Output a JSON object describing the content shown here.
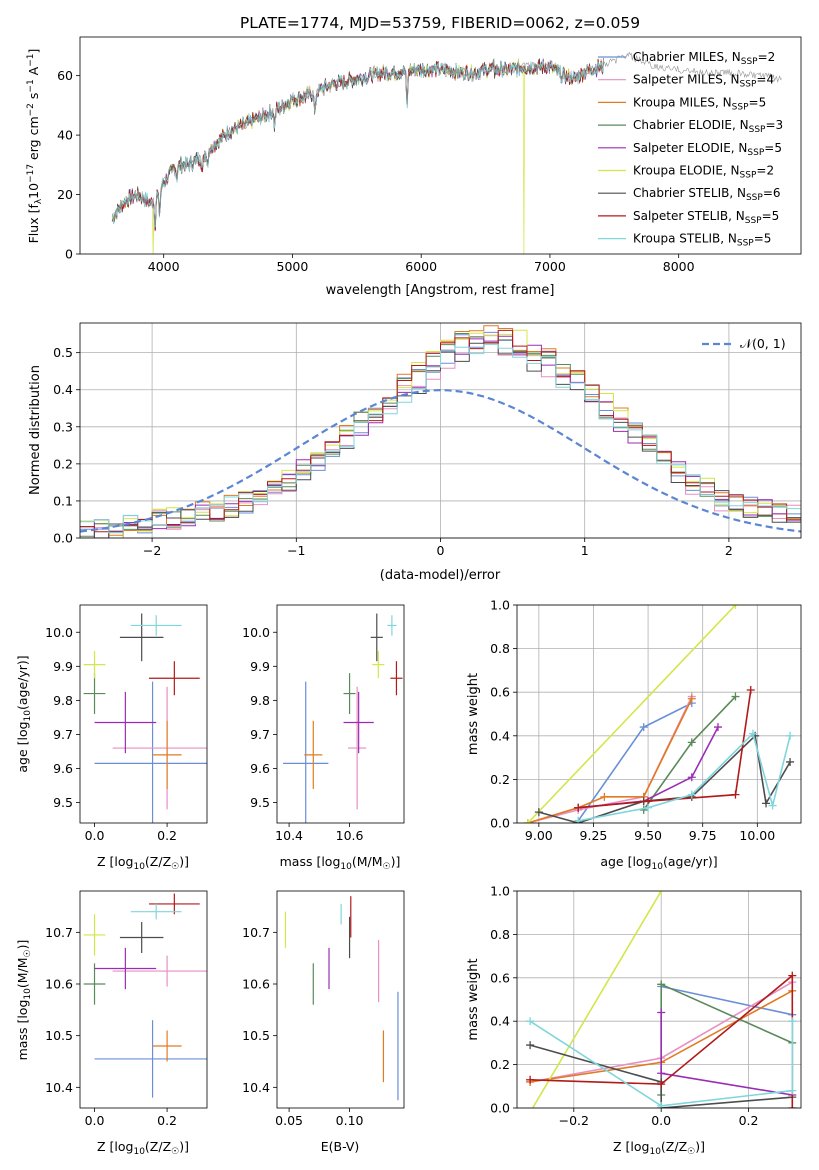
{
  "colors": {
    "Chabrier MILES": "#6a8fd8",
    "Salpeter MILES": "#e88fc3",
    "Kroupa MILES": "#e07b22",
    "Chabrier ELODIE": "#5a8a5a",
    "Salpeter ELODIE": "#9b2db5",
    "Kroupa ELODIE": "#d4e64a",
    "Chabrier STELIB": "#4d4d4d",
    "Salpeter STELIB": "#b21a1a",
    "Kroupa STELIB": "#7fd6dc",
    "normal": "#5b86d4",
    "grid": "#b0b0b0"
  },
  "chart_data": [
    {
      "id": "spectrum",
      "type": "line",
      "title": "PLATE=1774, MJD=53759, FIBERID=0062, z=0.059",
      "xlabel": "wavelength [Angstrom, rest frame]",
      "ylabel": "Flux [f",
      "ylabel_sub": "λ",
      "ylabel_rest": "10",
      "ylabel_exp": "−17",
      "ylabel_rest2": " erg cm",
      "ylabel_exp2": "−2",
      "ylabel_rest3": " s",
      "ylabel_exp3": "−1",
      "ylabel_rest4": " A",
      "ylabel_exp4": "−1",
      "ylabel_rest5": "]",
      "xlim": [
        3350,
        8950
      ],
      "ylim": [
        0,
        73
      ],
      "xticks": [
        4000,
        5000,
        6000,
        7000,
        8000
      ],
      "yticks": [
        0,
        20,
        40,
        60
      ],
      "legend_location": "right",
      "legend": [
        {
          "name": "Chabrier MILES",
          "nssp": "2"
        },
        {
          "name": "Salpeter MILES",
          "nssp": "4"
        },
        {
          "name": "Kroupa MILES",
          "nssp": "5"
        },
        {
          "name": "Chabrier ELODIE",
          "nssp": "3"
        },
        {
          "name": "Salpeter ELODIE",
          "nssp": "5"
        },
        {
          "name": "Kroupa ELODIE",
          "nssp": "2"
        },
        {
          "name": "Chabrier STELIB",
          "nssp": "6"
        },
        {
          "name": "Salpeter STELIB",
          "nssp": "5"
        },
        {
          "name": "Kroupa STELIB",
          "nssp": "5"
        }
      ],
      "nssp_label": "N",
      "nssp_sub": "SSP",
      "continuum": [
        [
          3600,
          12
        ],
        [
          3700,
          18
        ],
        [
          3800,
          20
        ],
        [
          3900,
          17
        ],
        [
          4000,
          24
        ],
        [
          4100,
          30
        ],
        [
          4200,
          30
        ],
        [
          4300,
          33
        ],
        [
          4400,
          37
        ],
        [
          4500,
          41
        ],
        [
          4600,
          43
        ],
        [
          4700,
          45
        ],
        [
          4800,
          47
        ],
        [
          4900,
          49
        ],
        [
          5000,
          52
        ],
        [
          5100,
          53
        ],
        [
          5200,
          55
        ],
        [
          5300,
          57
        ],
        [
          5400,
          58
        ],
        [
          5500,
          59
        ],
        [
          5600,
          60
        ],
        [
          5700,
          61
        ],
        [
          5800,
          61
        ],
        [
          5900,
          62
        ],
        [
          6000,
          62
        ],
        [
          6100,
          62
        ],
        [
          6200,
          62
        ],
        [
          6300,
          61
        ],
        [
          6400,
          61
        ],
        [
          6500,
          62
        ],
        [
          6600,
          62
        ],
        [
          6700,
          62
        ],
        [
          6800,
          63
        ],
        [
          6900,
          63
        ],
        [
          7000,
          63
        ],
        [
          7100,
          60
        ],
        [
          7200,
          59
        ],
        [
          7300,
          62
        ],
        [
          7400,
          63
        ]
      ],
      "absorption_lines": [
        [
          3933,
          10
        ],
        [
          3968,
          8
        ],
        [
          4102,
          4
        ],
        [
          4300,
          6
        ],
        [
          4340,
          4
        ],
        [
          4861,
          5
        ],
        [
          5175,
          8
        ],
        [
          5890,
          12
        ],
        [
          6563,
          4
        ]
      ],
      "emission_lines": [
        [
          6563,
          8
        ]
      ],
      "drops": [
        {
          "series": "Kroupa ELODIE",
          "x": 3920
        },
        {
          "series": "Kroupa ELODIE",
          "x": 6800
        },
        {
          "series": "Salpeter STELIB",
          "x": 7420
        }
      ],
      "grey_extension": [
        [
          7400,
          63
        ],
        [
          7600,
          67
        ],
        [
          7800,
          63
        ],
        [
          8000,
          62
        ],
        [
          8200,
          61
        ],
        [
          8400,
          61
        ],
        [
          8600,
          60
        ],
        [
          8800,
          59
        ]
      ]
    },
    {
      "id": "residuals",
      "type": "histogram",
      "xlabel": "(data-model)/error",
      "ylabel": "Normed distribution",
      "xlim": [
        -2.5,
        2.5
      ],
      "ylim": [
        0,
        0.58
      ],
      "xticks": [
        -2,
        -1,
        0,
        1,
        2
      ],
      "yticks": [
        0.0,
        0.1,
        0.2,
        0.3,
        0.4,
        0.5
      ],
      "grid": true,
      "legend_label": "𝒩(0, 1)",
      "legend_location": "top-right",
      "bin_width": 0.1,
      "bin_start": -2.5,
      "template": [
        0.015,
        0.02,
        0.025,
        0.03,
        0.04,
        0.045,
        0.05,
        0.06,
        0.065,
        0.07,
        0.08,
        0.09,
        0.1,
        0.13,
        0.15,
        0.18,
        0.2,
        0.23,
        0.26,
        0.29,
        0.32,
        0.35,
        0.38,
        0.41,
        0.44,
        0.47,
        0.49,
        0.5,
        0.51,
        0.5,
        0.49,
        0.47,
        0.45,
        0.42,
        0.39,
        0.36,
        0.33,
        0.3,
        0.27,
        0.24,
        0.2,
        0.17,
        0.14,
        0.12,
        0.1,
        0.09,
        0.08,
        0.07,
        0.065,
        0.06
      ],
      "scale": [
        1.0,
        0.97,
        1.03,
        1.01,
        0.99,
        1.05,
        0.96,
        1.02,
        0.98
      ]
    },
    {
      "id": "age_vs_Z",
      "type": "errorbar",
      "xlabel": "Z [log",
      "xlabel_sub": "10",
      "xlabel_rest": "(Z/Z",
      "xlabel_sun": "☉",
      "xlabel_end": ")]",
      "ylabel": "age  [log",
      "ylabel_sub": "10",
      "ylabel_rest": "(age/yr)]",
      "xlim": [
        -0.04,
        0.31
      ],
      "ylim": [
        9.44,
        10.08
      ],
      "xticks": [
        0.0,
        0.2
      ],
      "yticks": [
        9.5,
        9.6,
        9.7,
        9.8,
        9.9,
        10.0
      ],
      "points": [
        {
          "series": "Chabrier MILES",
          "x": 0.16,
          "xerr": 0.16,
          "y": 9.615,
          "yerr": 0.24
        },
        {
          "series": "Salpeter MILES",
          "x": 0.2,
          "xerr": 0.15,
          "y": 9.66,
          "yerr": 0.18
        },
        {
          "series": "Kroupa MILES",
          "x": 0.2,
          "xerr": 0.04,
          "y": 9.64,
          "yerr": 0.1
        },
        {
          "series": "Chabrier ELODIE",
          "x": 0.0,
          "xerr": 0.03,
          "y": 9.82,
          "yerr": 0.06
        },
        {
          "series": "Salpeter ELODIE",
          "x": 0.085,
          "xerr": 0.085,
          "y": 9.735,
          "yerr": 0.09
        },
        {
          "series": "Kroupa ELODIE",
          "x": 0.0,
          "xerr": 0.03,
          "y": 9.905,
          "yerr": 0.04
        },
        {
          "series": "Chabrier STELIB",
          "x": 0.13,
          "xerr": 0.06,
          "y": 9.985,
          "yerr": 0.07
        },
        {
          "series": "Salpeter STELIB",
          "x": 0.22,
          "xerr": 0.07,
          "y": 9.865,
          "yerr": 0.05
        },
        {
          "series": "Kroupa STELIB",
          "x": 0.17,
          "xerr": 0.07,
          "y": 10.02,
          "yerr": 0.03
        }
      ]
    },
    {
      "id": "age_vs_mass",
      "type": "errorbar",
      "xlabel": "mass [log",
      "xlabel_sub": "10",
      "xlabel_rest": "(M/M",
      "xlabel_sun": "☉",
      "xlabel_end": ")]",
      "xlim": [
        10.36,
        10.78
      ],
      "ylim": [
        9.44,
        10.08
      ],
      "xticks": [
        10.4,
        10.6
      ],
      "yticks": [
        9.5,
        9.6,
        9.7,
        9.8,
        9.9,
        10.0
      ],
      "points": [
        {
          "series": "Chabrier MILES",
          "x": 10.455,
          "xerr": 0.075,
          "y": 9.615,
          "yerr": 0.24
        },
        {
          "series": "Salpeter MILES",
          "x": 10.625,
          "xerr": 0.03,
          "y": 9.66,
          "yerr": 0.18
        },
        {
          "series": "Kroupa MILES",
          "x": 10.48,
          "xerr": 0.03,
          "y": 9.64,
          "yerr": 0.1
        },
        {
          "series": "Chabrier ELODIE",
          "x": 10.6,
          "xerr": 0.02,
          "y": 9.82,
          "yerr": 0.06
        },
        {
          "series": "Salpeter ELODIE",
          "x": 10.63,
          "xerr": 0.05,
          "y": 9.735,
          "yerr": 0.09
        },
        {
          "series": "Kroupa ELODIE",
          "x": 10.695,
          "xerr": 0.02,
          "y": 9.905,
          "yerr": 0.04
        },
        {
          "series": "Chabrier STELIB",
          "x": 10.69,
          "xerr": 0.02,
          "y": 9.985,
          "yerr": 0.07
        },
        {
          "series": "Salpeter STELIB",
          "x": 10.755,
          "xerr": 0.02,
          "y": 9.865,
          "yerr": 0.05
        },
        {
          "series": "Kroupa STELIB",
          "x": 10.74,
          "xerr": 0.015,
          "y": 10.02,
          "yerr": 0.03
        }
      ]
    },
    {
      "id": "mass_weight_vs_age",
      "type": "line",
      "xlabel": "age  [log",
      "xlabel_sub": "10",
      "xlabel_rest": "(age/yr)]",
      "ylabel": "mass weight",
      "xlim": [
        8.9,
        10.2
      ],
      "ylim": [
        0,
        1.0
      ],
      "xticks": [
        9.0,
        9.25,
        9.5,
        9.75,
        10.0
      ],
      "yticks": [
        0.0,
        0.2,
        0.4,
        0.6,
        0.8,
        1.0
      ],
      "grid": true,
      "series": [
        {
          "name": "Chabrier MILES",
          "x": [
            9.18,
            9.48,
            9.7
          ],
          "y": [
            0.01,
            0.44,
            0.55
          ]
        },
        {
          "name": "Salpeter MILES",
          "x": [
            8.95,
            9.18,
            9.48,
            9.7
          ],
          "y": [
            0.0,
            0.06,
            0.12,
            0.58
          ]
        },
        {
          "name": "Kroupa MILES",
          "x": [
            8.95,
            9.18,
            9.3,
            9.48,
            9.7
          ],
          "y": [
            0.0,
            0.07,
            0.12,
            0.12,
            0.57
          ]
        },
        {
          "name": "Chabrier ELODIE",
          "x": [
            9.48,
            9.7,
            9.9
          ],
          "y": [
            0.06,
            0.37,
            0.58
          ]
        },
        {
          "name": "Salpeter ELODIE",
          "x": [
            9.18,
            9.48,
            9.7,
            9.82
          ],
          "y": [
            0.07,
            0.1,
            0.21,
            0.44
          ]
        },
        {
          "name": "Kroupa ELODIE",
          "x": [
            8.95,
            9.9
          ],
          "y": [
            0.0,
            1.0
          ]
        },
        {
          "name": "Chabrier STELIB",
          "x": [
            9.0,
            9.18,
            9.48,
            9.7,
            9.99,
            10.04,
            10.15
          ],
          "y": [
            0.05,
            0.0,
            0.1,
            0.12,
            0.4,
            0.09,
            0.28
          ]
        },
        {
          "name": "Salpeter STELIB",
          "x": [
            9.18,
            9.5,
            9.9,
            9.97
          ],
          "y": [
            0.07,
            0.1,
            0.13,
            0.61
          ]
        },
        {
          "name": "Kroupa STELIB",
          "x": [
            9.18,
            9.5,
            9.7,
            9.98,
            10.07,
            10.15
          ],
          "y": [
            0.01,
            0.07,
            0.13,
            0.41,
            0.08,
            0.4
          ]
        }
      ]
    },
    {
      "id": "mass_vs_Z",
      "type": "errorbar",
      "xlabel": "Z [log",
      "xlabel_sub": "10",
      "xlabel_rest": "(Z/Z",
      "xlabel_sun": "☉",
      "xlabel_end": ")]",
      "ylabel": "mass [log",
      "ylabel_sub": "10",
      "ylabel_rest": "(M/M",
      "ylabel_sun": "☉",
      "ylabel_end": ")]",
      "xlim": [
        -0.04,
        0.31
      ],
      "ylim": [
        10.36,
        10.78
      ],
      "xticks": [
        0.0,
        0.2
      ],
      "yticks": [
        10.4,
        10.5,
        10.6,
        10.7
      ],
      "points": [
        {
          "series": "Chabrier MILES",
          "x": 0.16,
          "xerr": 0.16,
          "y": 10.455,
          "yerr": 0.075
        },
        {
          "series": "Salpeter MILES",
          "x": 0.2,
          "xerr": 0.15,
          "y": 10.625,
          "yerr": 0.03
        },
        {
          "series": "Kroupa MILES",
          "x": 0.2,
          "xerr": 0.04,
          "y": 10.48,
          "yerr": 0.03
        },
        {
          "series": "Chabrier ELODIE",
          "x": 0.0,
          "xerr": 0.03,
          "y": 10.6,
          "yerr": 0.04
        },
        {
          "series": "Salpeter ELODIE",
          "x": 0.085,
          "xerr": 0.085,
          "y": 10.63,
          "yerr": 0.04
        },
        {
          "series": "Kroupa ELODIE",
          "x": 0.0,
          "xerr": 0.03,
          "y": 10.695,
          "yerr": 0.04
        },
        {
          "series": "Chabrier STELIB",
          "x": 0.13,
          "xerr": 0.06,
          "y": 10.69,
          "yerr": 0.03
        },
        {
          "series": "Salpeter STELIB",
          "x": 0.22,
          "xerr": 0.07,
          "y": 10.755,
          "yerr": 0.02
        },
        {
          "series": "Kroupa STELIB",
          "x": 0.17,
          "xerr": 0.07,
          "y": 10.74,
          "yerr": 0.015
        }
      ]
    },
    {
      "id": "mass_vs_ebv",
      "type": "errorbar",
      "xlabel": "E(B-V)",
      "xlim": [
        0.04,
        0.145
      ],
      "ylim": [
        10.36,
        10.78
      ],
      "xticks": [
        0.05,
        0.1
      ],
      "yticks": [
        10.4,
        10.5,
        10.6,
        10.7
      ],
      "points": [
        {
          "series": "Chabrier MILES",
          "x": 0.14,
          "xerr": 0.0,
          "y": 10.48,
          "yerr": 0.105
        },
        {
          "series": "Salpeter MILES",
          "x": 0.124,
          "xerr": 0.0,
          "y": 10.625,
          "yerr": 0.06
        },
        {
          "series": "Kroupa MILES",
          "x": 0.128,
          "xerr": 0.0,
          "y": 10.46,
          "yerr": 0.05
        },
        {
          "series": "Chabrier ELODIE",
          "x": 0.07,
          "xerr": 0.0,
          "y": 10.6,
          "yerr": 0.04
        },
        {
          "series": "Salpeter ELODIE",
          "x": 0.083,
          "xerr": 0.0,
          "y": 10.63,
          "yerr": 0.04
        },
        {
          "series": "Kroupa ELODIE",
          "x": 0.047,
          "xerr": 0.0,
          "y": 10.705,
          "yerr": 0.035
        },
        {
          "series": "Chabrier STELIB",
          "x": 0.1,
          "xerr": 0.0,
          "y": 10.69,
          "yerr": 0.04
        },
        {
          "series": "Salpeter STELIB",
          "x": 0.101,
          "xerr": 0.0,
          "y": 10.73,
          "yerr": 0.04
        },
        {
          "series": "Kroupa STELIB",
          "x": 0.093,
          "xerr": 0.0,
          "y": 10.735,
          "yerr": 0.02
        }
      ]
    },
    {
      "id": "mass_weight_vs_Z",
      "type": "line",
      "xlabel": "Z [log",
      "xlabel_sub": "10",
      "xlabel_rest": "(Z/Z",
      "xlabel_sun": "☉",
      "xlabel_end": ")]",
      "ylabel": "mass weight",
      "xlim": [
        -0.33,
        0.32
      ],
      "ylim": [
        0,
        1.0
      ],
      "xticks": [
        -0.2,
        0.0,
        0.2
      ],
      "yticks": [
        0.0,
        0.2,
        0.4,
        0.6,
        0.8,
        1.0
      ],
      "grid": true,
      "series": [
        {
          "name": "Chabrier MILES",
          "x": [
            0.0,
            0.3
          ],
          "y": [
            0.56,
            0.43
          ]
        },
        {
          "name": "Salpeter MILES",
          "x": [
            -0.3,
            0.0,
            0.3
          ],
          "y": [
            0.12,
            0.23,
            0.58
          ]
        },
        {
          "name": "Kroupa MILES",
          "x": [
            -0.3,
            0.0,
            0.3
          ],
          "y": [
            0.12,
            0.21,
            0.54
          ]
        },
        {
          "name": "Chabrier ELODIE",
          "x": [
            0.0,
            0.0,
            0.3
          ],
          "y": [
            0.06,
            0.57,
            0.3
          ]
        },
        {
          "name": "Salpeter ELODIE",
          "x": [
            0.0,
            0.0,
            0.3
          ],
          "y": [
            0.44,
            0.16,
            0.06
          ]
        },
        {
          "name": "Kroupa ELODIE",
          "x": [
            -0.3,
            0.0
          ],
          "y": [
            -0.02,
            1.0
          ]
        },
        {
          "name": "Chabrier STELIB",
          "x": [
            -0.3,
            0.0,
            0.0,
            0.3
          ],
          "y": [
            0.29,
            0.12,
            0.0,
            0.05
          ]
        },
        {
          "name": "Salpeter STELIB",
          "x": [
            -0.3,
            0.0,
            0.3,
            0.3
          ],
          "y": [
            0.13,
            0.11,
            0.61,
            0.0
          ]
        },
        {
          "name": "Kroupa STELIB",
          "x": [
            -0.3,
            0.0,
            0.3,
            0.3
          ],
          "y": [
            0.4,
            0.01,
            0.08,
            0.4
          ]
        }
      ]
    }
  ]
}
